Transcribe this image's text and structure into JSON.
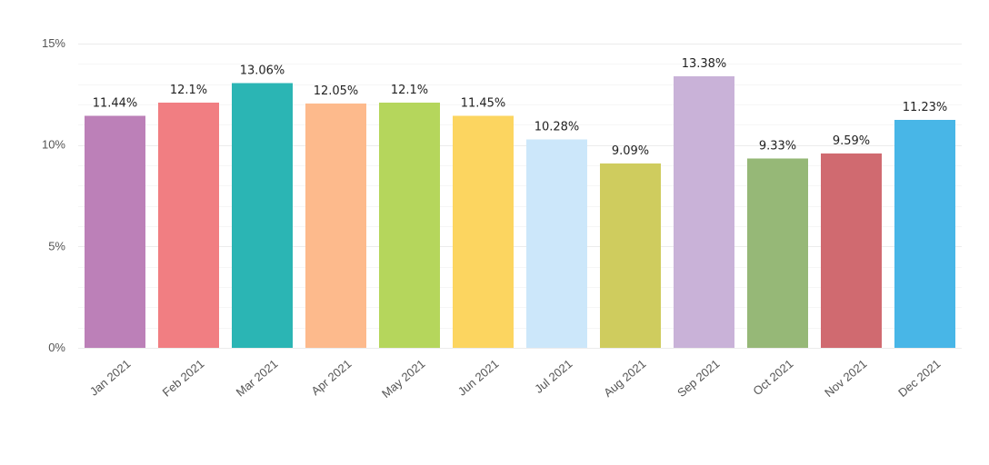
{
  "chart_data": {
    "type": "bar",
    "title": "",
    "xlabel": "",
    "ylabel": "",
    "categories": [
      "Jan 2021",
      "Feb 2021",
      "Mar 2021",
      "Apr 2021",
      "May 2021",
      "Jun 2021",
      "Jul 2021",
      "Aug 2021",
      "Sep 2021",
      "Oct 2021",
      "Nov 2021",
      "Dec 2021"
    ],
    "values": [
      11.44,
      12.1,
      13.06,
      12.05,
      12.1,
      11.45,
      10.28,
      9.09,
      13.38,
      9.33,
      9.59,
      11.23
    ],
    "value_labels": [
      "11.44%",
      "12.1%",
      "13.06%",
      "12.05%",
      "12.1%",
      "11.45%",
      "10.28%",
      "9.09%",
      "13.38%",
      "9.33%",
      "9.59%",
      "11.23%"
    ],
    "colors": [
      "#BC80B8",
      "#F17E82",
      "#2BB5B4",
      "#FDBA8C",
      "#B5D65C",
      "#FCD560",
      "#CCE7FA",
      "#CFCC5E",
      "#C9B2D8",
      "#96B877",
      "#D06A70",
      "#48B6E7"
    ],
    "ylim": [
      0,
      15
    ],
    "yticks": [
      0,
      5,
      10,
      15
    ],
    "ytick_labels": [
      "0%",
      "5%",
      "10%",
      "15%"
    ],
    "grid": true,
    "legend": "none"
  }
}
